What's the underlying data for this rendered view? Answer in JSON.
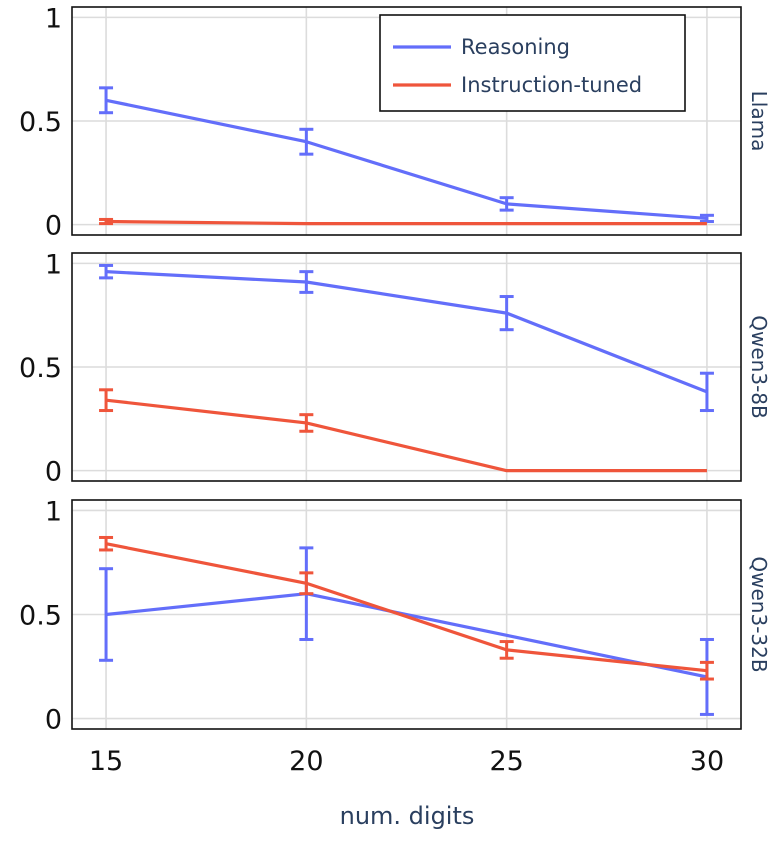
{
  "chart_data": {
    "type": "line",
    "xlabel": "num. digits",
    "x": [
      15,
      20,
      25,
      30
    ],
    "x_ticks": [
      "15",
      "20",
      "25",
      "30"
    ],
    "ylim": [
      -0.05,
      1.05
    ],
    "y_ticks": [
      {
        "value": 0,
        "label": "0"
      },
      {
        "value": 0.5,
        "label": "0.5"
      },
      {
        "value": 1,
        "label": "1"
      }
    ],
    "legend": {
      "position": "top-right",
      "entries": [
        {
          "name": "Reasoning",
          "color": "#636efa"
        },
        {
          "name": "Instruction-tuned",
          "color": "#ef553b"
        }
      ]
    },
    "panels": [
      {
        "facet": "Llama",
        "series": [
          {
            "name": "Reasoning",
            "color": "#636efa",
            "values": [
              0.6,
              0.4,
              0.1,
              0.03
            ],
            "errors": [
              0.06,
              0.06,
              0.03,
              0.015
            ]
          },
          {
            "name": "Instruction-tuned",
            "color": "#ef553b",
            "values": [
              0.015,
              0.005,
              0.005,
              0.005
            ],
            "errors": [
              0.01,
              0,
              0,
              0
            ]
          }
        ]
      },
      {
        "facet": "Qwen3-8B",
        "series": [
          {
            "name": "Reasoning",
            "color": "#636efa",
            "values": [
              0.96,
              0.91,
              0.76,
              0.38
            ],
            "errors": [
              0.03,
              0.05,
              0.08,
              0.09
            ]
          },
          {
            "name": "Instruction-tuned",
            "color": "#ef553b",
            "values": [
              0.34,
              0.23,
              0.0,
              0.0
            ],
            "errors": [
              0.05,
              0.04,
              0,
              0
            ]
          }
        ]
      },
      {
        "facet": "Qwen3-32B",
        "series": [
          {
            "name": "Reasoning",
            "color": "#636efa",
            "values": [
              0.5,
              0.6,
              0.4,
              0.2
            ],
            "errors": [
              0.22,
              0.22,
              0,
              0.18
            ]
          },
          {
            "name": "Instruction-tuned",
            "color": "#ef553b",
            "values": [
              0.84,
              0.65,
              0.33,
              0.23
            ],
            "errors": [
              0.03,
              0.05,
              0.04,
              0.04
            ]
          }
        ]
      }
    ]
  }
}
